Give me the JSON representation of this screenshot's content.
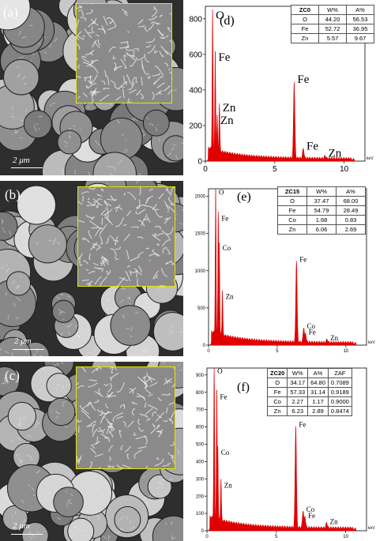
{
  "panels": {
    "a": {
      "label": "(a)",
      "scale": "2 μm"
    },
    "b": {
      "label": "(b)",
      "scale": "2 μm"
    },
    "c": {
      "label": "(c)",
      "scale": "2 μm"
    },
    "d": {
      "label": "(d)"
    },
    "e": {
      "label": "(e)"
    },
    "f": {
      "label": "(f)"
    }
  },
  "tables": {
    "d": {
      "header": [
        "ZC0",
        "W%",
        "A%"
      ],
      "rows": [
        [
          "O",
          "44.20",
          "56.53"
        ],
        [
          "Fe",
          "52.72",
          "36.95"
        ],
        [
          "Zn",
          "5.57",
          "9.67"
        ]
      ]
    },
    "e": {
      "header": [
        "ZC15",
        "W%",
        "A%"
      ],
      "rows": [
        [
          "O",
          "37.47",
          "68.00"
        ],
        [
          "Fe",
          "54.79",
          "28.49"
        ],
        [
          "Co",
          "1.68",
          "0.83"
        ],
        [
          "Zn",
          "6.06",
          "2.69"
        ]
      ]
    },
    "f": {
      "header": [
        "ZC20",
        "W%",
        "A%",
        "ZAF"
      ],
      "rows": [
        [
          "O",
          "34.17",
          "64.80",
          "0.7089"
        ],
        [
          "Fe",
          "57.33",
          "31.14",
          "0.9189"
        ],
        [
          "Co",
          "2.27",
          "1.17",
          "0.9000"
        ],
        [
          "Zn",
          "6.23",
          "2.89",
          "0.8474"
        ]
      ]
    }
  },
  "colors": {
    "spectrum": "#e00000",
    "inset_frame": "#e6e600"
  },
  "chart_data": [
    {
      "type": "area",
      "xlabel": "keV",
      "xlim": [
        0,
        11.5
      ],
      "ylim": [
        0,
        870
      ],
      "xticks": [
        "0",
        "5",
        "10"
      ],
      "yticks": [
        "0",
        "200",
        "400",
        "600",
        "800"
      ],
      "peaks": [
        {
          "label": "O",
          "x": 0.52,
          "y": 790
        },
        {
          "label": "Fe",
          "x": 0.71,
          "y": 555
        },
        {
          "label": "Zn",
          "x": 1.01,
          "y": 270
        },
        {
          "label": "Zn",
          "x": 0.85,
          "y": 200
        },
        {
          "label": "Fe",
          "x": 6.4,
          "y": 430
        },
        {
          "label": "Fe",
          "x": 7.06,
          "y": 55
        },
        {
          "label": "Zn",
          "x": 8.63,
          "y": 15
        }
      ]
    },
    {
      "type": "area",
      "xlabel": "keV",
      "xlim": [
        0,
        11.5
      ],
      "ylim": [
        0,
        2100
      ],
      "xticks": [
        "0",
        "5",
        "10"
      ],
      "yticks": [
        "0",
        "500",
        "1000",
        "1500",
        "2000"
      ],
      "peaks": [
        {
          "label": "O",
          "x": 0.52,
          "y": 2000
        },
        {
          "label": "Fe",
          "x": 0.71,
          "y": 1650
        },
        {
          "label": "Co",
          "x": 0.78,
          "y": 1250
        },
        {
          "label": "Zn",
          "x": 1.01,
          "y": 600
        },
        {
          "label": "Fe",
          "x": 6.4,
          "y": 1100
        },
        {
          "label": "Co",
          "x": 6.93,
          "y": 200
        },
        {
          "label": "Fe",
          "x": 7.06,
          "y": 120
        },
        {
          "label": "Zn",
          "x": 8.63,
          "y": 40
        }
      ]
    },
    {
      "type": "area",
      "xlabel": "keV",
      "xlim": [
        0,
        11.5
      ],
      "ylim": [
        0,
        940
      ],
      "xticks": [
        "0",
        "5",
        "10"
      ],
      "yticks": [
        "0",
        "100",
        "200",
        "300",
        "400",
        "500",
        "600",
        "700",
        "800",
        "900"
      ],
      "peaks": [
        {
          "label": "O",
          "x": 0.52,
          "y": 900
        },
        {
          "label": "Fe",
          "x": 0.71,
          "y": 750
        },
        {
          "label": "Co",
          "x": 0.78,
          "y": 430
        },
        {
          "label": "Zn",
          "x": 1.01,
          "y": 240
        },
        {
          "label": "Fe",
          "x": 6.4,
          "y": 590
        },
        {
          "label": "Co",
          "x": 6.93,
          "y": 100
        },
        {
          "label": "Fe",
          "x": 7.06,
          "y": 65
        },
        {
          "label": "Zn",
          "x": 8.63,
          "y": 30
        }
      ]
    }
  ]
}
